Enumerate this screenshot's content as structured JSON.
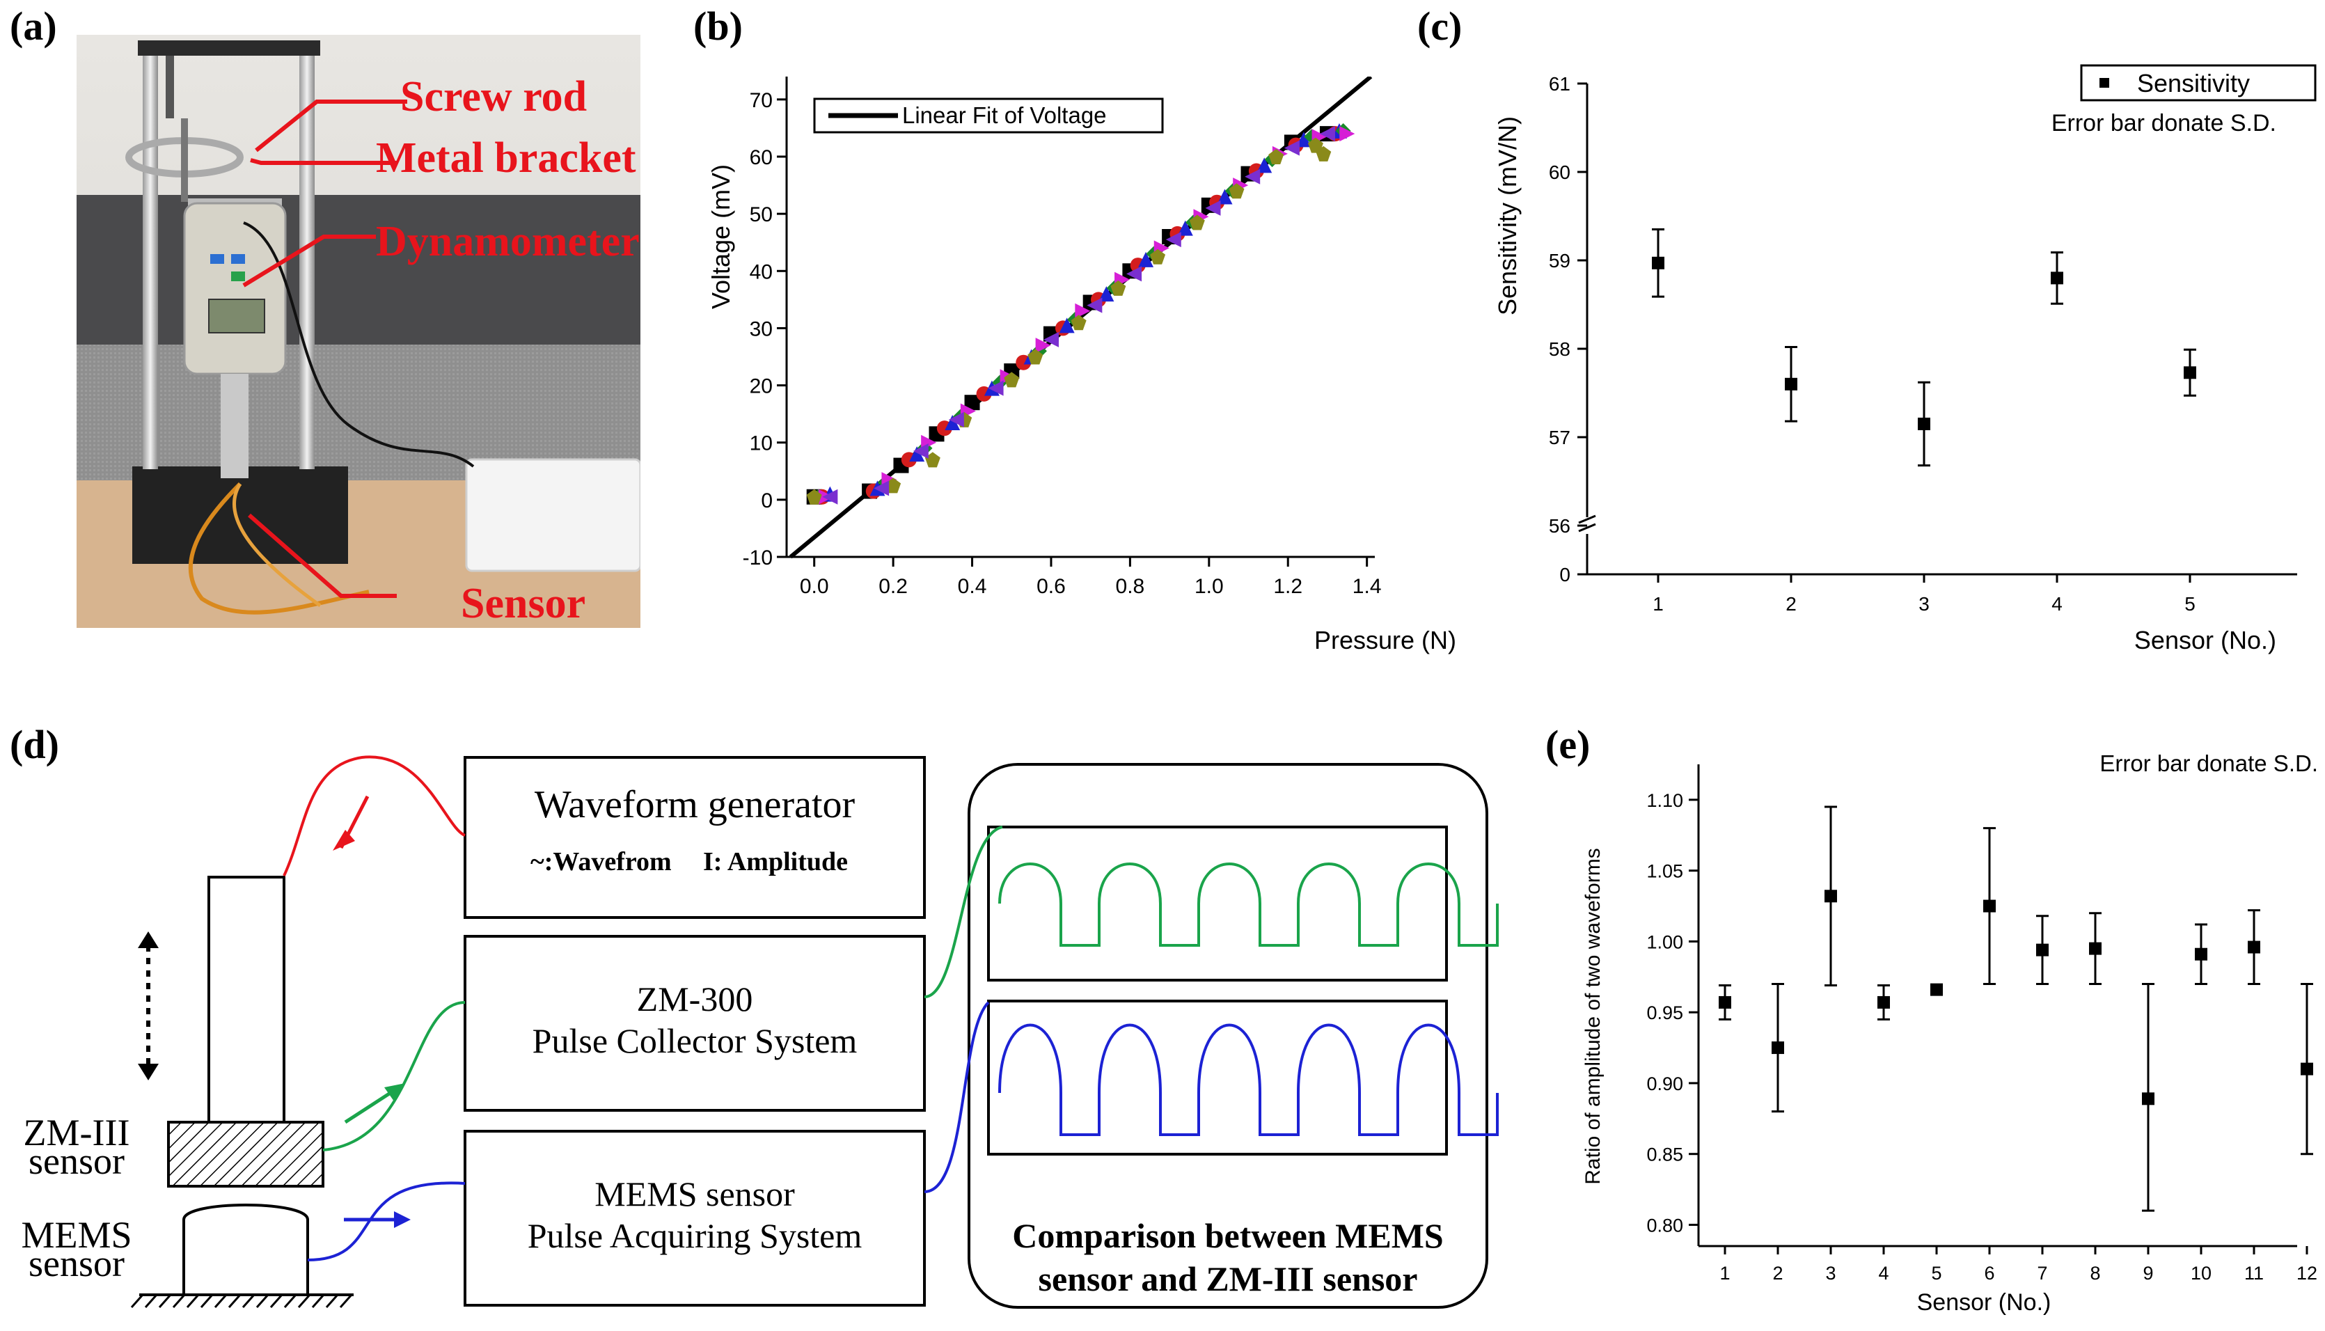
{
  "panel_labels": {
    "a": "(a)",
    "b": "(b)",
    "c": "(c)",
    "d": "(d)",
    "e": "(e)"
  },
  "photo": {
    "labels": {
      "screw_rod": "Screw rod",
      "metal_bracket": "Metal bracket",
      "dynamometer": "Dynamometer",
      "sensor": "Sensor"
    },
    "colors": {
      "label": "#e8141c"
    }
  },
  "colors": {
    "red": "#e8141c",
    "green": "#1aa44b",
    "blue": "#1c22d4",
    "black": "#000000"
  },
  "chart_data": [
    {
      "id": "b",
      "type": "scatter",
      "xlabel": "Pressure (N)",
      "ylabel": "Voltage (mV)",
      "xlim": [
        -0.07,
        1.42
      ],
      "ylim": [
        -10,
        74
      ],
      "xticks": [
        "0.0",
        "0.2",
        "0.4",
        "0.6",
        "0.8",
        "1.0",
        "1.2",
        "1.4"
      ],
      "xtick_values": [
        0,
        0.2,
        0.4,
        0.6,
        0.8,
        1.0,
        1.2,
        1.4
      ],
      "yticks": [
        "-10",
        "0",
        "10",
        "20",
        "30",
        "40",
        "50",
        "60",
        "70"
      ],
      "ytick_values": [
        -10,
        0,
        10,
        20,
        30,
        40,
        50,
        60,
        70
      ],
      "legend": "Linear Fit of Voltage",
      "fit": {
        "x": [
          -0.06,
          1.41
        ],
        "y": [
          -10,
          74
        ]
      },
      "series": [
        {
          "name": "s1",
          "color": "#000000",
          "marker": "square",
          "x": [
            0,
            0.14,
            0.22,
            0.31,
            0.4,
            0.5,
            0.6,
            0.7,
            0.8,
            0.9,
            1.0,
            1.1,
            1.21,
            1.3
          ],
          "y": [
            0.5,
            1.5,
            6,
            11.5,
            17,
            22.5,
            29,
            34.5,
            40,
            46,
            51.5,
            57,
            62.5,
            64
          ]
        },
        {
          "name": "s2",
          "color": "#d41d1d",
          "marker": "circle",
          "x": [
            0.02,
            0.15,
            0.24,
            0.33,
            0.43,
            0.53,
            0.63,
            0.72,
            0.82,
            0.92,
            1.02,
            1.12,
            1.22,
            1.32
          ],
          "y": [
            0.5,
            1.5,
            7,
            12.5,
            18.5,
            24,
            30,
            35,
            41,
            46.5,
            52,
            57.5,
            62,
            64
          ]
        },
        {
          "name": "s3",
          "color": "#1c22d4",
          "marker": "triangle-up",
          "x": [
            0.04,
            0.16,
            0.26,
            0.35,
            0.45,
            0.55,
            0.64,
            0.74,
            0.84,
            0.94,
            1.04,
            1.14,
            1.24,
            1.33
          ],
          "y": [
            1,
            2,
            8,
            13.5,
            19.5,
            25,
            30.5,
            36,
            42,
            47.5,
            53,
            58.5,
            63,
            64.5
          ]
        },
        {
          "name": "s4",
          "color": "#1a8a2a",
          "marker": "diamond",
          "x": [
            0.01,
            0.18,
            0.28,
            0.37,
            0.47,
            0.57,
            0.66,
            0.76,
            0.86,
            0.96,
            1.06,
            1.16,
            1.26,
            1.34
          ],
          "y": [
            0.5,
            3,
            9,
            14.5,
            20.5,
            26,
            31.5,
            37,
            43,
            48.5,
            54,
            59.5,
            63.5,
            64.5
          ]
        },
        {
          "name": "s5",
          "color": "#d61fd6",
          "marker": "triangle-right",
          "x": [
            0.03,
            0.19,
            0.29,
            0.39,
            0.49,
            0.58,
            0.68,
            0.78,
            0.88,
            0.98,
            1.08,
            1.18,
            1.28,
            1.35
          ],
          "y": [
            0.5,
            3.5,
            10,
            15.5,
            21.5,
            27,
            33,
            38.5,
            44,
            49.5,
            55,
            60.5,
            63.5,
            64
          ]
        },
        {
          "name": "s6",
          "color": "#8a8a1a",
          "marker": "pentagon",
          "x": [
            0,
            0.2,
            0.3,
            0.38,
            0.5,
            0.56,
            0.67,
            0.77,
            0.87,
            0.97,
            1.07,
            1.17,
            1.27,
            1.29
          ],
          "y": [
            0.5,
            2.5,
            7,
            14,
            21,
            25,
            31,
            37,
            42.5,
            48.5,
            54,
            60,
            62,
            60.5
          ]
        },
        {
          "name": "s7",
          "color": "#7a2fd0",
          "marker": "triangle-left",
          "x": [
            0.04,
            0.17,
            0.27,
            0.36,
            0.46,
            0.6,
            0.71,
            0.81,
            0.91,
            1.01,
            1.11,
            1.21,
            1.3
          ],
          "y": [
            0.5,
            2,
            8.5,
            14,
            19.5,
            28,
            34,
            39.5,
            45.5,
            51,
            56.5,
            61.5,
            64
          ]
        }
      ]
    },
    {
      "id": "c",
      "type": "scatter",
      "xlabel": "Sensor (No.)",
      "ylabel": "Sensitivity (mV/N)",
      "categories": [
        "1",
        "2",
        "3",
        "4",
        "5"
      ],
      "values": [
        58.97,
        57.6,
        57.15,
        58.8,
        57.73
      ],
      "errors": [
        0.38,
        0.42,
        0.47,
        0.29,
        0.26
      ],
      "yticks": [
        "56",
        "57",
        "58",
        "59",
        "60",
        "61"
      ],
      "ytick_values": [
        56,
        57,
        58,
        59,
        60,
        61
      ],
      "ytick_zero": "0",
      "ylim": [
        56,
        61
      ],
      "legend": "Sensitivity",
      "note": "Error bar donate S.D."
    },
    {
      "id": "e",
      "type": "scatter",
      "xlabel": "Sensor (No.)",
      "ylabel": "Ratio of amplitude of two waveforms",
      "categories": [
        "1",
        "2",
        "3",
        "4",
        "5",
        "6",
        "7",
        "8",
        "9",
        "10",
        "11",
        "12"
      ],
      "values": [
        0.957,
        0.925,
        1.032,
        0.957,
        0.966,
        1.025,
        0.994,
        0.995,
        0.889,
        0.991,
        0.996,
        0.91
      ],
      "err_low": [
        0.012,
        0.045,
        0.063,
        0.012,
        0.002,
        0.055,
        0.024,
        0.025,
        0.079,
        0.021,
        0.026,
        0.06
      ],
      "err_high": [
        0.012,
        0.045,
        0.063,
        0.012,
        0.002,
        0.055,
        0.024,
        0.025,
        0.081,
        0.021,
        0.026,
        0.06
      ],
      "yticks": [
        "0.80",
        "0.85",
        "0.90",
        "0.95",
        "1.00",
        "1.05",
        "1.10"
      ],
      "ytick_values": [
        0.8,
        0.85,
        0.9,
        0.95,
        1.0,
        1.05,
        1.1
      ],
      "ylim": [
        0.785,
        1.125
      ],
      "note": "Error bar donate S.D."
    }
  ],
  "diagram": {
    "waveform_title": "Waveform generator",
    "waveform_sub1": "~:Wavefrom",
    "waveform_sub2": "I: Amplitude",
    "zm300_line1": "ZM-300",
    "zm300_line2": "Pulse Collector System",
    "mems_line1": "MEMS sensor",
    "mems_line2": "Pulse Acquiring System",
    "comparison_line1": "Comparison between MEMS",
    "comparison_line2": "sensor and ZM-III sensor",
    "zm3_label_line1": "ZM-III",
    "zm3_label_line2": "sensor",
    "mems_label_line1": "MEMS",
    "mems_label_line2": "sensor"
  }
}
